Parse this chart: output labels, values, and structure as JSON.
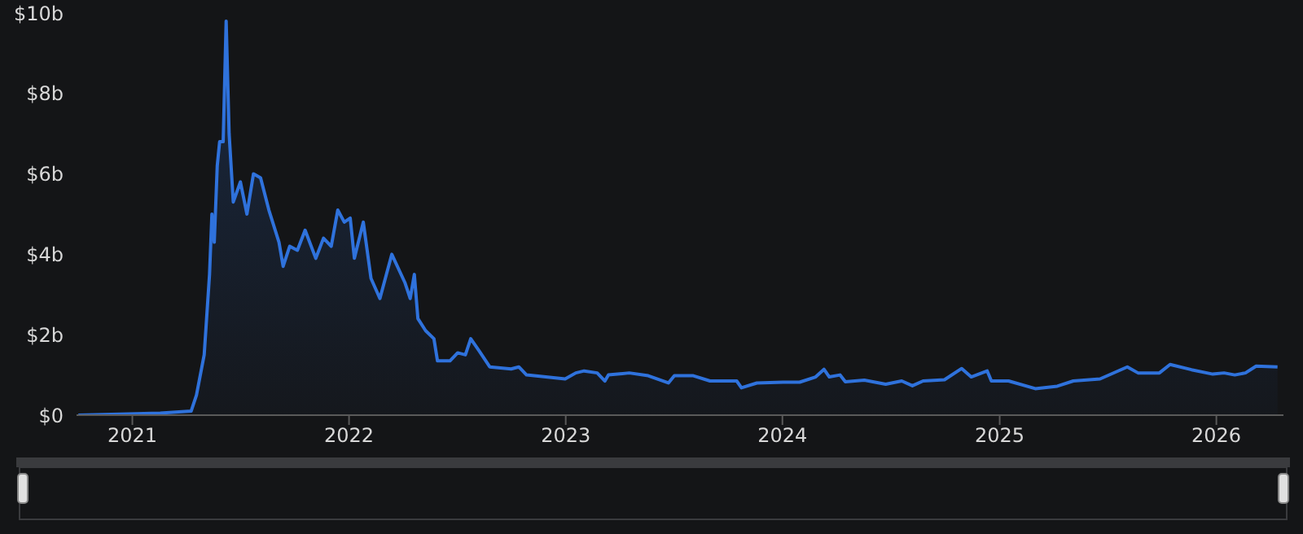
{
  "chart_data": {
    "type": "area",
    "xlim": [
      "2020-09-29",
      "2026-04-24"
    ],
    "xticks": [
      "2021",
      "2022",
      "2023",
      "2024",
      "2025",
      "2026"
    ],
    "ylim": [
      0,
      10
    ],
    "yticks": [
      {
        "value": 0,
        "label": "$0"
      },
      {
        "value": 2,
        "label": "$2b"
      },
      {
        "value": 4,
        "label": "$4b"
      },
      {
        "value": 6,
        "label": "$6b"
      },
      {
        "value": 8,
        "label": "$8b"
      },
      {
        "value": 10,
        "label": "$10b"
      }
    ],
    "grid": false,
    "legend": false,
    "x": [
      "2020-10-02",
      "2021-02-17",
      "2021-04-10",
      "2021-04-19",
      "2021-05-02",
      "2021-05-11",
      "2021-05-15",
      "2021-05-19",
      "2021-05-24",
      "2021-05-28",
      "2021-06-03",
      "2021-06-08",
      "2021-06-13",
      "2021-06-20",
      "2021-07-02",
      "2021-07-13",
      "2021-07-24",
      "2021-08-05",
      "2021-08-19",
      "2021-09-05",
      "2021-09-12",
      "2021-09-23",
      "2021-10-06",
      "2021-10-19",
      "2021-11-06",
      "2021-11-19",
      "2021-12-02",
      "2021-12-13",
      "2021-12-24",
      "2022-01-03",
      "2022-01-10",
      "2022-01-25",
      "2022-02-07",
      "2022-02-22",
      "2022-03-14",
      "2022-04-05",
      "2022-04-14",
      "2022-04-21",
      "2022-04-27",
      "2022-05-10",
      "2022-05-24",
      "2022-05-30",
      "2022-06-20",
      "2022-07-03",
      "2022-07-16",
      "2022-07-25",
      "2022-08-08",
      "2022-08-26",
      "2022-10-01",
      "2022-10-14",
      "2022-10-27",
      "2022-12-31",
      "2023-01-18",
      "2023-02-01",
      "2023-02-23",
      "2023-03-08",
      "2023-03-14",
      "2023-04-18",
      "2023-05-20",
      "2023-06-23",
      "2023-07-03",
      "2023-08-04",
      "2023-09-01",
      "2023-10-16",
      "2023-10-24",
      "2023-11-19",
      "2024-01-02",
      "2024-01-30",
      "2024-02-26",
      "2024-03-11",
      "2024-03-20",
      "2024-04-07",
      "2024-04-16",
      "2024-05-18",
      "2024-06-23",
      "2024-07-20",
      "2024-08-07",
      "2024-08-25",
      "2024-09-30",
      "2024-10-29",
      "2024-11-14",
      "2024-12-11",
      "2024-12-18",
      "2025-01-16",
      "2025-03-02",
      "2025-04-08",
      "2025-05-05",
      "2025-06-19",
      "2025-08-04",
      "2025-08-22",
      "2025-09-27",
      "2025-10-15",
      "2025-11-20",
      "2025-12-26",
      "2026-01-14",
      "2026-02-01",
      "2026-02-19",
      "2026-03-09",
      "2026-04-14"
    ],
    "series": [
      {
        "color": "#2f72dc",
        "line_style": "solid",
        "marker": "none",
        "values": [
          0,
          0.05,
          0.1,
          0.5,
          1.5,
          3.5,
          5.0,
          4.3,
          6.2,
          6.8,
          6.8,
          9.8,
          7.0,
          5.3,
          5.8,
          5.0,
          6.0,
          5.9,
          5.1,
          4.3,
          3.7,
          4.2,
          4.1,
          4.6,
          3.9,
          4.4,
          4.2,
          5.1,
          4.8,
          4.9,
          3.9,
          4.8,
          3.4,
          2.9,
          4.0,
          3.3,
          2.9,
          3.5,
          2.4,
          2.1,
          1.9,
          1.35,
          1.35,
          1.55,
          1.5,
          1.9,
          1.6,
          1.2,
          1.15,
          1.2,
          1.0,
          0.9,
          1.05,
          1.1,
          1.05,
          0.85,
          1.0,
          1.05,
          0.98,
          0.8,
          0.98,
          0.98,
          0.85,
          0.85,
          0.68,
          0.8,
          0.82,
          0.82,
          0.95,
          1.14,
          0.95,
          1.0,
          0.83,
          0.87,
          0.77,
          0.85,
          0.73,
          0.85,
          0.88,
          1.16,
          0.95,
          1.1,
          0.85,
          0.85,
          0.66,
          0.72,
          0.85,
          0.9,
          1.2,
          1.05,
          1.05,
          1.26,
          1.13,
          1.02,
          1.05,
          1.0,
          1.05,
          1.22,
          1.2
        ]
      }
    ]
  }
}
